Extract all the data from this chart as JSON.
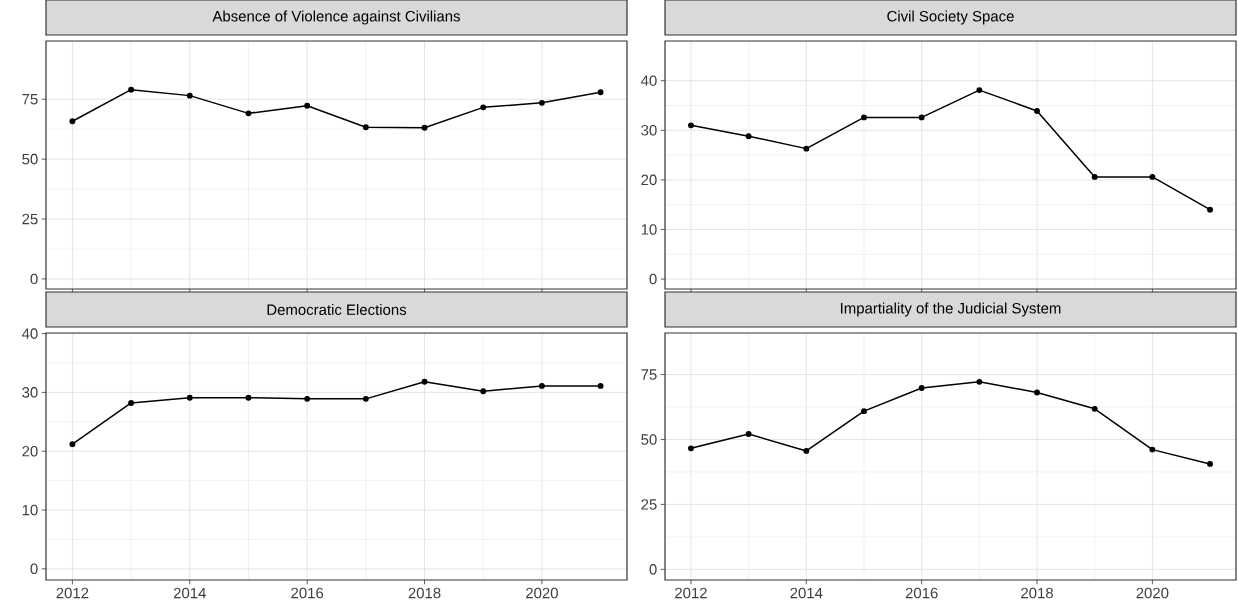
{
  "chart_data": [
    {
      "type": "line",
      "title": "Absence of Violence against Civilians",
      "x": [
        2012,
        2013,
        2014,
        2015,
        2016,
        2017,
        2018,
        2019,
        2020,
        2021
      ],
      "values": [
        65.8,
        79,
        76.5,
        69.1,
        72.3,
        63.3,
        63.1,
        71.6,
        73.5,
        77.9
      ],
      "color": "#000000",
      "xlim": [
        2011.55,
        2021.45
      ],
      "ylim": [
        -4.2,
        99.3
      ],
      "xticks": [
        2012,
        2014,
        2016,
        2018,
        2020
      ],
      "yticks": [
        0,
        25,
        50,
        75
      ],
      "grid": true,
      "marker": "circle",
      "tick_labels": "y"
    },
    {
      "type": "line",
      "title": "Civil Society Space",
      "x": [
        2012,
        2013,
        2014,
        2015,
        2016,
        2017,
        2018,
        2019,
        2020,
        2021
      ],
      "values": [
        31.0,
        28.8,
        26.3,
        32.6,
        32.6,
        38.1,
        33.9,
        20.6,
        20.6,
        14.0
      ],
      "color": "#000000",
      "xlim": [
        2011.55,
        2021.45
      ],
      "ylim": [
        -2.0,
        48.0
      ],
      "xticks": [
        2012,
        2014,
        2016,
        2018,
        2020
      ],
      "yticks": [
        0,
        10,
        20,
        30,
        40
      ],
      "grid": true,
      "marker": "circle",
      "tick_labels": "y"
    },
    {
      "type": "line",
      "title": "Democratic Elections",
      "x": [
        2012,
        2013,
        2014,
        2015,
        2016,
        2017,
        2018,
        2019,
        2020,
        2021
      ],
      "values": [
        21.2,
        28.2,
        29.1,
        29.1,
        28.9,
        28.9,
        31.8,
        30.2,
        31.1,
        31.1
      ],
      "color": "#000000",
      "xlim": [
        2011.55,
        2021.45
      ],
      "ylim": [
        -1.9,
        40.1
      ],
      "xticks": [
        2012,
        2014,
        2016,
        2018,
        2020
      ],
      "yticks": [
        0,
        10,
        20,
        30,
        40
      ],
      "grid": true,
      "marker": "circle"
    },
    {
      "type": "line",
      "title": "Impartiality of the Judicial System",
      "x": [
        2012,
        2013,
        2014,
        2015,
        2016,
        2017,
        2018,
        2019,
        2020,
        2021
      ],
      "values": [
        46.6,
        52.1,
        45.6,
        60.9,
        69.8,
        72.2,
        68.1,
        61.8,
        46.1,
        40.6
      ],
      "color": "#000000",
      "xlim": [
        2011.55,
        2021.45
      ],
      "ylim": [
        -4.1,
        91.0
      ],
      "xticks": [
        2012,
        2014,
        2016,
        2018,
        2020
      ],
      "yticks": [
        0,
        25,
        50,
        75
      ],
      "grid": true,
      "marker": "circle"
    }
  ]
}
